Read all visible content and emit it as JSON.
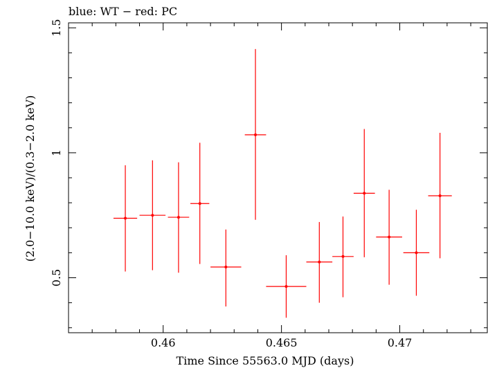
{
  "chart_data": {
    "type": "scatter",
    "title": "blue: WT − red: PC",
    "xlabel": "Time Since 55563.0 MJD (days)",
    "ylabel": "(2.0−10.0 keV)/(0.3−2.0 keV)",
    "xlim": [
      0.456,
      0.4737
    ],
    "ylim": [
      0.28,
      1.52
    ],
    "xticks": [
      0.46,
      0.465,
      0.47
    ],
    "xtick_labels": [
      "0.46",
      "0.465",
      "0.47"
    ],
    "yticks": [
      0.5,
      1.0,
      1.5
    ],
    "ytick_labels": [
      "0.5",
      "1",
      "1.5"
    ],
    "grid": false,
    "series": [
      {
        "color": "#ff0000",
        "points": [
          {
            "x": 0.4584,
            "xerr": 0.0005,
            "y": 0.738,
            "ylow": 0.525,
            "yhigh": 0.95
          },
          {
            "x": 0.45955,
            "xerr": 0.00055,
            "y": 0.75,
            "ylow": 0.53,
            "yhigh": 0.97
          },
          {
            "x": 0.46065,
            "xerr": 0.00045,
            "y": 0.742,
            "ylow": 0.52,
            "yhigh": 0.962
          },
          {
            "x": 0.46155,
            "xerr": 0.0004,
            "y": 0.797,
            "ylow": 0.555,
            "yhigh": 1.04
          },
          {
            "x": 0.46265,
            "xerr": 0.00065,
            "y": 0.543,
            "ylow": 0.385,
            "yhigh": 0.693
          },
          {
            "x": 0.4639,
            "xerr": 0.00045,
            "y": 1.072,
            "ylow": 0.732,
            "yhigh": 1.415
          },
          {
            "x": 0.4652,
            "xerr": 0.00085,
            "y": 0.465,
            "ylow": 0.34,
            "yhigh": 0.59
          },
          {
            "x": 0.4666,
            "xerr": 0.00055,
            "y": 0.563,
            "ylow": 0.4,
            "yhigh": 0.723
          },
          {
            "x": 0.4676,
            "xerr": 0.00045,
            "y": 0.585,
            "ylow": 0.422,
            "yhigh": 0.745
          },
          {
            "x": 0.4685,
            "xerr": 0.00045,
            "y": 0.838,
            "ylow": 0.582,
            "yhigh": 1.095
          },
          {
            "x": 0.46955,
            "xerr": 0.00055,
            "y": 0.663,
            "ylow": 0.472,
            "yhigh": 0.852
          },
          {
            "x": 0.4707,
            "xerr": 0.00055,
            "y": 0.6,
            "ylow": 0.428,
            "yhigh": 0.772
          },
          {
            "x": 0.4717,
            "xerr": 0.0005,
            "y": 0.828,
            "ylow": 0.578,
            "yhigh": 1.08
          }
        ]
      }
    ]
  }
}
